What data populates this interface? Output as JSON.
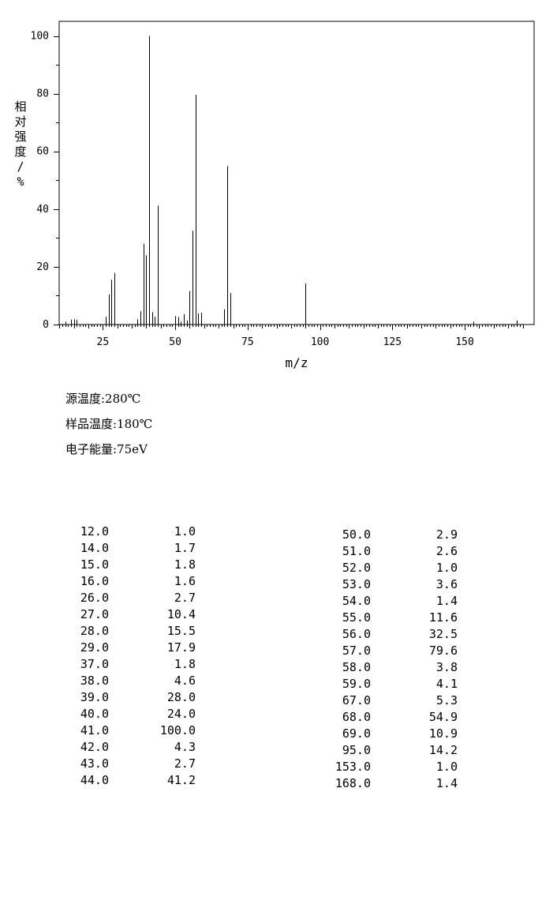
{
  "chart_data": {
    "type": "bar",
    "xlabel": "m/z",
    "ylabel": "相对强度/%",
    "xlim": [
      10,
      170
    ],
    "ylim": [
      0,
      100
    ],
    "xticks": [
      25,
      50,
      75,
      100,
      125,
      150
    ],
    "yticks": [
      0,
      20,
      40,
      60,
      80,
      100
    ],
    "series": [
      {
        "x": [
          12,
          14,
          15,
          16,
          26,
          27,
          28,
          29,
          37,
          38,
          39,
          40,
          41,
          42,
          43,
          44,
          50,
          51,
          52,
          53,
          54,
          55,
          56,
          57,
          58,
          59,
          67,
          68,
          69,
          95,
          153,
          168
        ],
        "values": [
          1.0,
          1.7,
          1.8,
          1.6,
          2.7,
          10.4,
          15.5,
          17.9,
          1.8,
          4.6,
          28.0,
          24.0,
          100.0,
          4.3,
          2.7,
          41.2,
          2.9,
          2.6,
          1.0,
          3.6,
          1.4,
          11.6,
          32.5,
          79.6,
          3.8,
          4.1,
          5.3,
          54.9,
          10.9,
          14.2,
          1.0,
          1.4
        ]
      }
    ]
  },
  "conditions": {
    "source_temp": "源温度:280℃",
    "sample_temp": "样品温度:180℃",
    "electron_energy": "电子能量:75eV"
  },
  "peak_table": {
    "left": [
      {
        "mz": "12.0",
        "abundance": "1.0"
      },
      {
        "mz": "14.0",
        "abundance": "1.7"
      },
      {
        "mz": "15.0",
        "abundance": "1.8"
      },
      {
        "mz": "16.0",
        "abundance": "1.6"
      },
      {
        "mz": "26.0",
        "abundance": "2.7"
      },
      {
        "mz": "27.0",
        "abundance": "10.4"
      },
      {
        "mz": "28.0",
        "abundance": "15.5"
      },
      {
        "mz": "29.0",
        "abundance": "17.9"
      },
      {
        "mz": "37.0",
        "abundance": "1.8"
      },
      {
        "mz": "38.0",
        "abundance": "4.6"
      },
      {
        "mz": "39.0",
        "abundance": "28.0"
      },
      {
        "mz": "40.0",
        "abundance": "24.0"
      },
      {
        "mz": "41.0",
        "abundance": "100.0"
      },
      {
        "mz": "42.0",
        "abundance": "4.3"
      },
      {
        "mz": "43.0",
        "abundance": "2.7"
      },
      {
        "mz": "44.0",
        "abundance": "41.2"
      }
    ],
    "right": [
      {
        "mz": "50.0",
        "abundance": "2.9"
      },
      {
        "mz": "51.0",
        "abundance": "2.6"
      },
      {
        "mz": "52.0",
        "abundance": "1.0"
      },
      {
        "mz": "53.0",
        "abundance": "3.6"
      },
      {
        "mz": "54.0",
        "abundance": "1.4"
      },
      {
        "mz": "55.0",
        "abundance": "11.6"
      },
      {
        "mz": "56.0",
        "abundance": "32.5"
      },
      {
        "mz": "57.0",
        "abundance": "79.6"
      },
      {
        "mz": "58.0",
        "abundance": "3.8"
      },
      {
        "mz": "59.0",
        "abundance": "4.1"
      },
      {
        "mz": "67.0",
        "abundance": "5.3"
      },
      {
        "mz": "68.0",
        "abundance": "54.9"
      },
      {
        "mz": "69.0",
        "abundance": "10.9"
      },
      {
        "mz": "95.0",
        "abundance": "14.2"
      },
      {
        "mz": "153.0",
        "abundance": "1.0"
      },
      {
        "mz": "168.0",
        "abundance": "1.4"
      }
    ]
  }
}
